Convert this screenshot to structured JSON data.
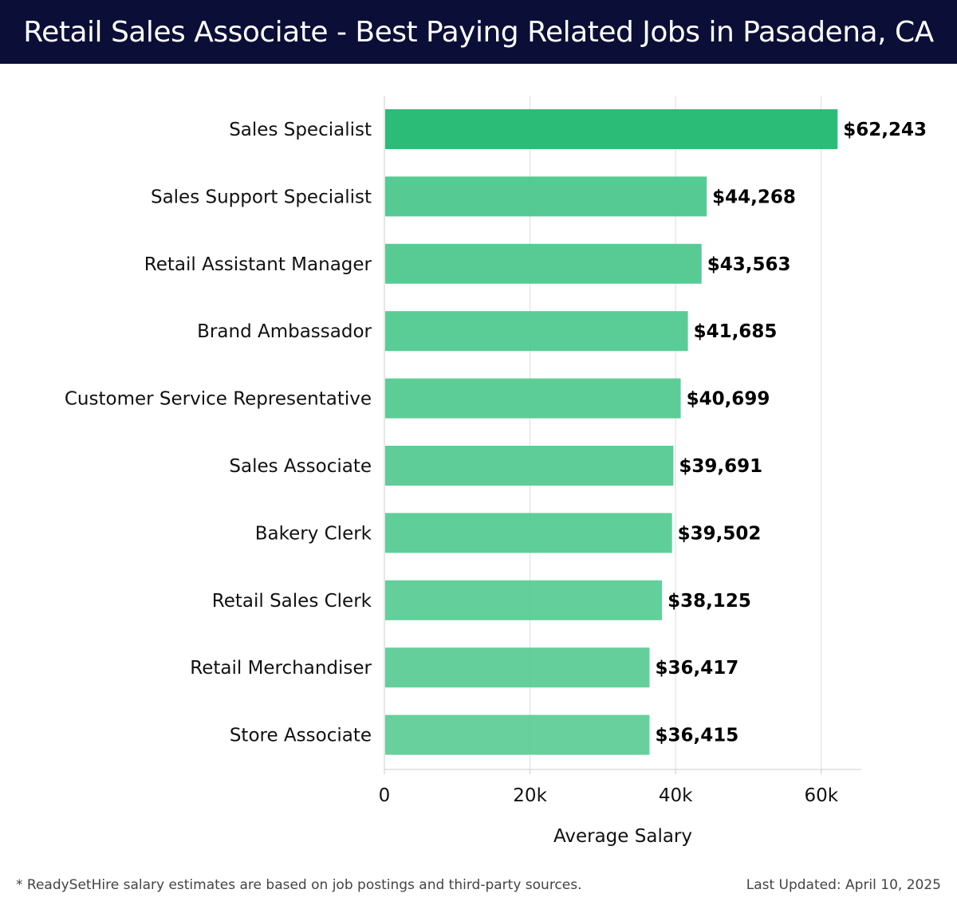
{
  "header": {
    "title": "Retail Sales Associate - Best Paying Related Jobs in Pasadena, CA"
  },
  "chart_data": {
    "type": "bar",
    "orientation": "horizontal",
    "title": "Retail Sales Associate - Best Paying Related Jobs in Pasadena, CA",
    "xlabel": "Average Salary",
    "ylabel": "",
    "xlim": [
      0,
      65500
    ],
    "grid": true,
    "categories": [
      "Sales Specialist",
      "Sales Support Specialist",
      "Retail Assistant Manager",
      "Brand Ambassador",
      "Customer Service Representative",
      "Sales Associate",
      "Bakery Clerk",
      "Retail Sales Clerk",
      "Retail Merchandiser",
      "Store Associate"
    ],
    "values": [
      62243,
      44268,
      43563,
      41685,
      40699,
      39691,
      39502,
      38125,
      36417,
      36415
    ],
    "value_labels": [
      "$62,243",
      "$44,268",
      "$43,563",
      "$41,685",
      "$40,699",
      "$39,691",
      "$39,502",
      "$38,125",
      "$36,417",
      "$36,415"
    ],
    "x_ticks": [
      0,
      20000,
      40000,
      60000
    ],
    "x_tick_labels": [
      "0",
      "20k",
      "40k",
      "60k"
    ],
    "colors": {
      "highlight": "#2bbd77",
      "bar": "#50c98f",
      "grid": "#dddddd"
    }
  },
  "footer": {
    "note": "* ReadySetHire salary estimates are based on job postings and third-party sources.",
    "updated": "Last Updated: April 10, 2025"
  }
}
